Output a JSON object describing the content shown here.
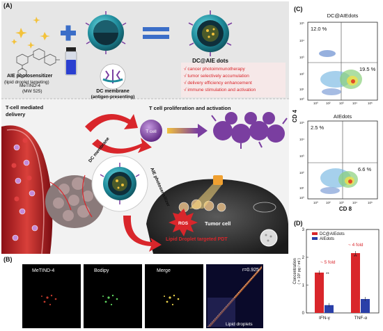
{
  "panel_a": {
    "label": "(A)",
    "molecule_name": "MeTIND-4",
    "molecule_mw": "(MW 525)",
    "photosensitizer_title": "AIE photosensitizer",
    "photosensitizer_sub": "(lipid droplet targeting)",
    "membrane_title": "DC membrane",
    "membrane_sub": "(antigen-presenting)",
    "product_title": "DC@AIE dots",
    "features": [
      "√ cancer photoimmunotherapy",
      "√ tumor selectively accumulation",
      "√ delivery efficiency enhancement",
      "√ immune stimulation and activation"
    ],
    "tcell_delivery_line1": "T-cell mediated",
    "tcell_delivery_line2": "delivery",
    "tcell_prolif": "T cell proliferation and activation",
    "tcell_label": "T cell",
    "dc_membrane_arc": "DC membrane",
    "aie_arc": "AIE photosensitizer",
    "ros": "ROS",
    "tumor_cell": "Tumor cell",
    "pdt": "Lipid Droplet targeted PDT",
    "colors": {
      "accent_red": "#d9262b",
      "teal": "#1f8c9c",
      "purple": "#7a3ea0"
    }
  },
  "panel_b": {
    "label": "(B)",
    "images": [
      "MeTIND-4",
      "Bodipy",
      "Merge"
    ],
    "r_value": "r=0.925",
    "corr_label": "Lipid droplets"
  },
  "panel_c": {
    "label": "(C)",
    "top_title": "DC@AIEdots",
    "bottom_title": "AIEdots",
    "ylabel": "CD 4",
    "xlabel": "CD 8",
    "ticks": [
      "10⁰",
      "10¹",
      "10²",
      "10³",
      "10⁴",
      "10⁵"
    ],
    "top_q1": "12.0 %",
    "top_q2": "19.5 %",
    "bottom_q1": "2.5 %",
    "bottom_q2": "6.6 %"
  },
  "panel_d": {
    "label": "(D)",
    "chart_data": {
      "type": "bar",
      "categories": [
        "IFN-γ",
        "TNF-α"
      ],
      "series": [
        {
          "name": "DC@AIEdots",
          "values": [
            1.45,
            2.15
          ],
          "color": "#d9262b"
        },
        {
          "name": "AIEdots",
          "values": [
            0.28,
            0.5
          ],
          "color": "#2a3fa8"
        }
      ],
      "ylabel": "Concentration",
      "ylabel_unit": "( × 10² pg / ml )",
      "ylim": [
        0,
        3
      ],
      "yticks": [
        "0",
        "1",
        "2",
        "3"
      ],
      "annotations": [
        "~ 5 fold",
        "~ 4 fold"
      ],
      "significance": [
        "**",
        "**"
      ],
      "legend_position": "top"
    }
  }
}
